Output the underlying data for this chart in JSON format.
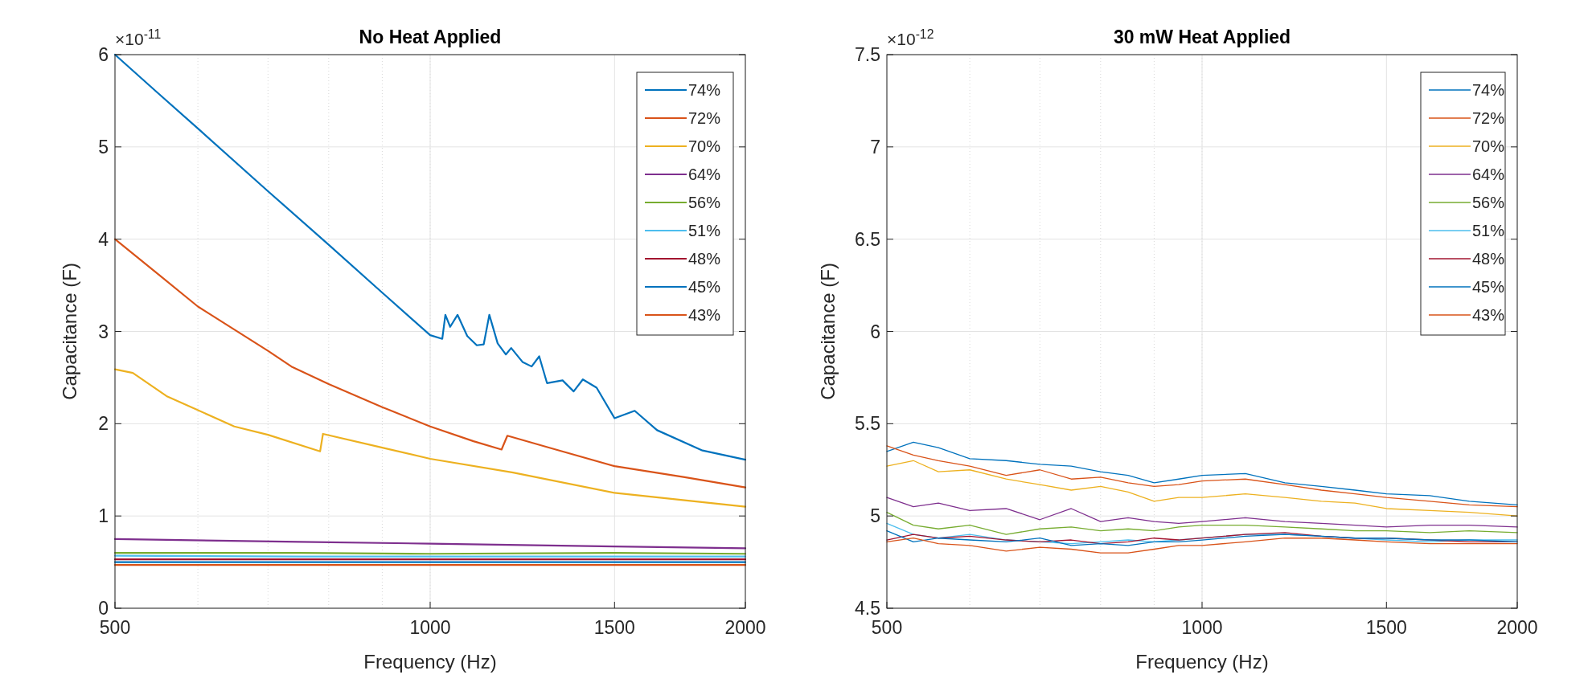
{
  "chart_data": [
    {
      "type": "line",
      "title": "No Heat Applied",
      "xlabel": "Frequency (Hz)",
      "ylabel": "Capacitance (F)",
      "annotations": [
        "×10$^{-11}$"
      ],
      "log": "x",
      "grid": true,
      "legend": "top right",
      "xlim": [
        500,
        2000
      ],
      "xticks": [
        500,
        1000,
        1500,
        2000
      ],
      "ylim": [
        0,
        6
      ],
      "yticks": [
        0,
        1,
        2,
        3,
        4,
        5,
        6
      ],
      "series": [
        {
          "name": "74%",
          "color": "#0072bd",
          "x": [
            500,
            550,
            600,
            700,
            800,
            900,
            1000,
            1027,
            1034,
            1045,
            1062,
            1085,
            1108,
            1125,
            1139,
            1160,
            1181,
            1195,
            1225,
            1250,
            1271,
            1293,
            1338,
            1371,
            1399,
            1442,
            1500,
            1568,
            1647,
            1820,
            2000
          ],
          "values": [
            6,
            5.58,
            5.2,
            4.52,
            3.94,
            3.42,
            2.96,
            2.92,
            3.18,
            3.05,
            3.18,
            2.95,
            2.85,
            2.86,
            3.18,
            2.87,
            2.75,
            2.82,
            2.67,
            2.62,
            2.73,
            2.44,
            2.47,
            2.35,
            2.48,
            2.39,
            2.06,
            2.14,
            1.93,
            1.71,
            1.61
          ]
        },
        {
          "name": "72%",
          "color": "#d95319",
          "x": [
            500,
            550,
            600,
            700,
            737,
            800,
            900,
            1000,
            1100,
            1170,
            1185,
            1300,
            1500,
            1750,
            2000
          ],
          "values": [
            4,
            3.62,
            3.27,
            2.79,
            2.62,
            2.43,
            2.18,
            1.97,
            1.81,
            1.72,
            1.87,
            1.74,
            1.54,
            1.42,
            1.31
          ]
        },
        {
          "name": "70%",
          "color": "#edb120",
          "x": [
            500,
            520,
            560,
            650,
            700,
            785,
            790,
            900,
            1000,
            1200,
            1500,
            2000
          ],
          "values": [
            2.59,
            2.55,
            2.3,
            1.97,
            1.88,
            1.7,
            1.89,
            1.74,
            1.62,
            1.47,
            1.25,
            1.1
          ]
        },
        {
          "name": "64%",
          "color": "#7e2f8e",
          "x": [
            500,
            750,
            1000,
            1500,
            2000
          ],
          "values": [
            0.75,
            0.72,
            0.7,
            0.67,
            0.65
          ]
        },
        {
          "name": "56%",
          "color": "#77ac30",
          "x": [
            500,
            750,
            1000,
            1500,
            2000
          ],
          "values": [
            0.6,
            0.6,
            0.59,
            0.6,
            0.59
          ]
        },
        {
          "name": "51%",
          "color": "#4dbeee",
          "x": [
            500,
            750,
            1000,
            1500,
            2000
          ],
          "values": [
            0.57,
            0.56,
            0.56,
            0.56,
            0.56
          ]
        },
        {
          "name": "48%",
          "color": "#a2142f",
          "x": [
            500,
            750,
            1000,
            1500,
            2000
          ],
          "values": [
            0.53,
            0.53,
            0.53,
            0.53,
            0.53
          ]
        },
        {
          "name": "45%",
          "color": "#0072bd",
          "x": [
            500,
            750,
            1000,
            1500,
            2000
          ],
          "values": [
            0.5,
            0.5,
            0.5,
            0.5,
            0.5
          ]
        },
        {
          "name": "43%",
          "color": "#d95319",
          "x": [
            500,
            750,
            1000,
            1500,
            2000
          ],
          "values": [
            0.47,
            0.47,
            0.47,
            0.47,
            0.47
          ]
        }
      ]
    },
    {
      "type": "line",
      "title": "30 mW Heat Applied",
      "xlabel": "Frequency (Hz)",
      "ylabel": "Capacitance (F)",
      "annotations": [
        "×10$^{-12}$"
      ],
      "log": "x",
      "grid": true,
      "legend": "top right",
      "xlim": [
        500,
        2000
      ],
      "xticks": [
        500,
        1000,
        1500,
        2000
      ],
      "ylim": [
        4.5,
        7.5
      ],
      "yticks": [
        4.5,
        5,
        5.5,
        6,
        6.5,
        7,
        7.5
      ],
      "x": [
        500,
        530,
        560,
        600,
        650,
        700,
        750,
        800,
        850,
        900,
        950,
        1000,
        1100,
        1200,
        1300,
        1400,
        1500,
        1650,
        1800,
        2000
      ],
      "series": [
        {
          "name": "74%",
          "color": "#0072bd",
          "values": [
            5.35,
            5.4,
            5.37,
            5.31,
            5.3,
            5.28,
            5.27,
            5.24,
            5.22,
            5.18,
            5.2,
            5.22,
            5.23,
            5.18,
            5.16,
            5.14,
            5.12,
            5.11,
            5.08,
            5.06
          ]
        },
        {
          "name": "72%",
          "color": "#d95319",
          "values": [
            5.38,
            5.33,
            5.3,
            5.27,
            5.22,
            5.25,
            5.2,
            5.21,
            5.18,
            5.16,
            5.17,
            5.19,
            5.2,
            5.17,
            5.14,
            5.12,
            5.1,
            5.08,
            5.06,
            5.05
          ]
        },
        {
          "name": "70%",
          "color": "#edb120",
          "values": [
            5.27,
            5.3,
            5.24,
            5.25,
            5.2,
            5.17,
            5.14,
            5.16,
            5.13,
            5.08,
            5.1,
            5.1,
            5.12,
            5.1,
            5.08,
            5.07,
            5.04,
            5.03,
            5.02,
            5
          ]
        },
        {
          "name": "64%",
          "color": "#7e2f8e",
          "values": [
            5.1,
            5.05,
            5.07,
            5.03,
            5.04,
            4.98,
            5.04,
            4.97,
            4.99,
            4.97,
            4.96,
            4.97,
            4.99,
            4.97,
            4.96,
            4.95,
            4.94,
            4.95,
            4.95,
            4.94
          ]
        },
        {
          "name": "56%",
          "color": "#77ac30",
          "values": [
            5.02,
            4.95,
            4.93,
            4.95,
            4.9,
            4.93,
            4.94,
            4.92,
            4.93,
            4.92,
            4.94,
            4.95,
            4.95,
            4.94,
            4.93,
            4.92,
            4.92,
            4.91,
            4.92,
            4.91
          ]
        },
        {
          "name": "51%",
          "color": "#4dbeee",
          "values": [
            4.96,
            4.9,
            4.88,
            4.9,
            4.87,
            4.86,
            4.85,
            4.86,
            4.87,
            4.86,
            4.87,
            4.88,
            4.9,
            4.9,
            4.89,
            4.88,
            4.87,
            4.86,
            4.87,
            4.87
          ]
        },
        {
          "name": "48%",
          "color": "#a2142f",
          "values": [
            4.87,
            4.9,
            4.88,
            4.89,
            4.87,
            4.86,
            4.87,
            4.85,
            4.86,
            4.88,
            4.87,
            4.88,
            4.9,
            4.91,
            4.89,
            4.88,
            4.88,
            4.87,
            4.86,
            4.86
          ]
        },
        {
          "name": "45%",
          "color": "#0072bd",
          "values": [
            4.92,
            4.86,
            4.88,
            4.87,
            4.86,
            4.88,
            4.84,
            4.85,
            4.84,
            4.86,
            4.86,
            4.87,
            4.89,
            4.9,
            4.89,
            4.88,
            4.88,
            4.87,
            4.87,
            4.86
          ]
        },
        {
          "name": "43%",
          "color": "#d95319",
          "values": [
            4.86,
            4.88,
            4.85,
            4.84,
            4.81,
            4.83,
            4.82,
            4.8,
            4.8,
            4.82,
            4.84,
            4.84,
            4.86,
            4.88,
            4.88,
            4.87,
            4.86,
            4.85,
            4.85,
            4.85
          ]
        }
      ]
    }
  ]
}
